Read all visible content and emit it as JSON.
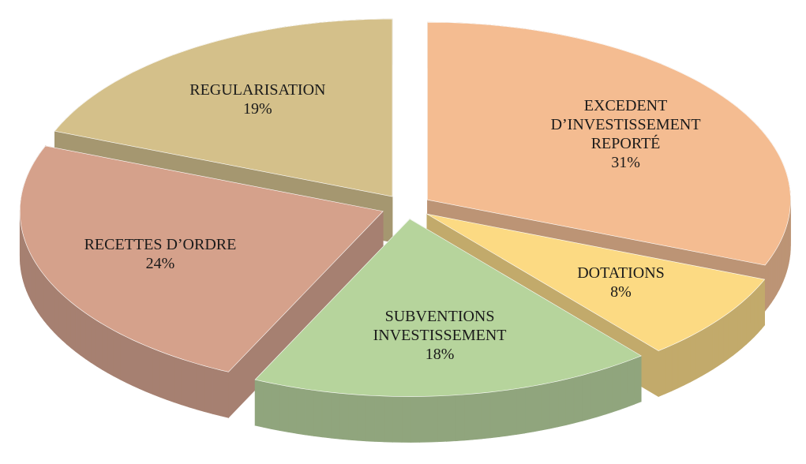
{
  "chart_data": {
    "type": "pie",
    "categories": [
      "EXCEDENT D’INVESTISSEMENT REPORTÉ",
      "DOTATIONS",
      "SUBVENTIONS INVESTISSEMENT",
      "RECETTES D’ORDRE",
      "REGULARISATION"
    ],
    "values": [
      31,
      8,
      18,
      24,
      19
    ],
    "value_labels": [
      "31%",
      "8%",
      "18%",
      "24%",
      "19%"
    ],
    "colors": [
      "#f4bc91",
      "#fcda83",
      "#b6d49c",
      "#d5a18b",
      "#d4c08a"
    ]
  }
}
